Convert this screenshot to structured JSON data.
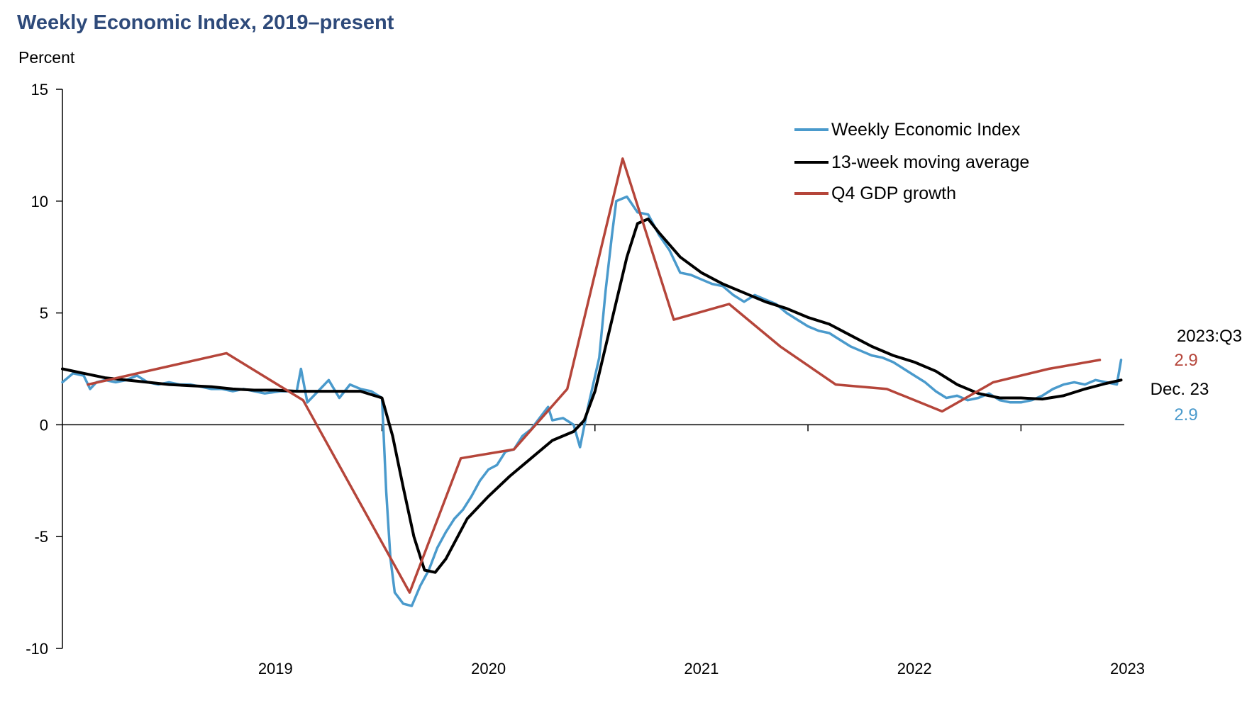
{
  "chart_data": {
    "type": "line",
    "title": "Weekly Economic Index, 2019–present",
    "ylabel": "Percent",
    "xlabel": "",
    "ylim": [
      -10,
      15
    ],
    "yticks": [
      -10,
      -5,
      0,
      5,
      10,
      15
    ],
    "xlim": [
      2018.5,
      2023.485
    ],
    "xticks": [
      2019,
      2020,
      2021,
      2022,
      2023
    ],
    "xtick_labels": [
      "2019",
      "2020",
      "2021",
      "2022",
      "2023"
    ],
    "grid": false,
    "legend_position": "top-right",
    "series": [
      {
        "name": "Weekly Economic Index",
        "color": "#4a9acc",
        "points": [
          [
            2018.5,
            1.9
          ],
          [
            2018.55,
            2.3
          ],
          [
            2018.6,
            2.2
          ],
          [
            2018.63,
            1.6
          ],
          [
            2018.66,
            1.9
          ],
          [
            2018.7,
            2.0
          ],
          [
            2018.75,
            1.9
          ],
          [
            2018.8,
            2.0
          ],
          [
            2018.85,
            2.2
          ],
          [
            2018.9,
            1.9
          ],
          [
            2018.95,
            1.8
          ],
          [
            2019.0,
            1.9
          ],
          [
            2019.05,
            1.8
          ],
          [
            2019.1,
            1.8
          ],
          [
            2019.15,
            1.7
          ],
          [
            2019.2,
            1.6
          ],
          [
            2019.25,
            1.6
          ],
          [
            2019.3,
            1.5
          ],
          [
            2019.35,
            1.6
          ],
          [
            2019.4,
            1.5
          ],
          [
            2019.45,
            1.4
          ],
          [
            2019.52,
            1.5
          ],
          [
            2019.6,
            1.5
          ],
          [
            2019.62,
            2.5
          ],
          [
            2019.65,
            1.0
          ],
          [
            2019.7,
            1.5
          ],
          [
            2019.75,
            2.0
          ],
          [
            2019.8,
            1.2
          ],
          [
            2019.85,
            1.8
          ],
          [
            2019.9,
            1.6
          ],
          [
            2019.95,
            1.5
          ],
          [
            2020.0,
            1.2
          ],
          [
            2020.02,
            -3.0
          ],
          [
            2020.04,
            -6.0
          ],
          [
            2020.06,
            -7.5
          ],
          [
            2020.1,
            -8.0
          ],
          [
            2020.14,
            -8.1
          ],
          [
            2020.18,
            -7.2
          ],
          [
            2020.22,
            -6.5
          ],
          [
            2020.26,
            -5.5
          ],
          [
            2020.3,
            -4.8
          ],
          [
            2020.34,
            -4.2
          ],
          [
            2020.38,
            -3.8
          ],
          [
            2020.42,
            -3.2
          ],
          [
            2020.46,
            -2.5
          ],
          [
            2020.5,
            -2.0
          ],
          [
            2020.54,
            -1.8
          ],
          [
            2020.58,
            -1.2
          ],
          [
            2020.62,
            -1.1
          ],
          [
            2020.66,
            -0.5
          ],
          [
            2020.7,
            -0.2
          ],
          [
            2020.74,
            0.3
          ],
          [
            2020.78,
            0.8
          ],
          [
            2020.8,
            0.2
          ],
          [
            2020.85,
            0.3
          ],
          [
            2020.9,
            0.0
          ],
          [
            2020.93,
            -1.0
          ],
          [
            2020.97,
            0.9
          ],
          [
            2021.02,
            3.0
          ],
          [
            2021.05,
            6.0
          ],
          [
            2021.08,
            8.5
          ],
          [
            2021.1,
            10.0
          ],
          [
            2021.15,
            10.2
          ],
          [
            2021.2,
            9.5
          ],
          [
            2021.25,
            9.4
          ],
          [
            2021.3,
            8.5
          ],
          [
            2021.35,
            7.8
          ],
          [
            2021.4,
            6.8
          ],
          [
            2021.45,
            6.7
          ],
          [
            2021.5,
            6.5
          ],
          [
            2021.55,
            6.3
          ],
          [
            2021.6,
            6.2
          ],
          [
            2021.65,
            5.8
          ],
          [
            2021.7,
            5.5
          ],
          [
            2021.75,
            5.8
          ],
          [
            2021.8,
            5.6
          ],
          [
            2021.85,
            5.4
          ],
          [
            2021.9,
            5.0
          ],
          [
            2021.95,
            4.7
          ],
          [
            2022.0,
            4.4
          ],
          [
            2022.05,
            4.2
          ],
          [
            2022.1,
            4.1
          ],
          [
            2022.15,
            3.8
          ],
          [
            2022.2,
            3.5
          ],
          [
            2022.25,
            3.3
          ],
          [
            2022.3,
            3.1
          ],
          [
            2022.35,
            3.0
          ],
          [
            2022.4,
            2.8
          ],
          [
            2022.45,
            2.5
          ],
          [
            2022.5,
            2.2
          ],
          [
            2022.55,
            1.9
          ],
          [
            2022.6,
            1.5
          ],
          [
            2022.65,
            1.2
          ],
          [
            2022.7,
            1.3
          ],
          [
            2022.75,
            1.1
          ],
          [
            2022.8,
            1.2
          ],
          [
            2022.85,
            1.4
          ],
          [
            2022.9,
            1.1
          ],
          [
            2022.95,
            1.0
          ],
          [
            2023.0,
            1.0
          ],
          [
            2023.05,
            1.1
          ],
          [
            2023.1,
            1.3
          ],
          [
            2023.15,
            1.6
          ],
          [
            2023.2,
            1.8
          ],
          [
            2023.25,
            1.9
          ],
          [
            2023.3,
            1.8
          ],
          [
            2023.35,
            2.0
          ],
          [
            2023.4,
            1.9
          ],
          [
            2023.45,
            1.8
          ],
          [
            2023.47,
            2.9
          ]
        ]
      },
      {
        "name": "13-week moving average",
        "color": "#000000",
        "points": [
          [
            2018.5,
            2.5
          ],
          [
            2018.6,
            2.3
          ],
          [
            2018.7,
            2.1
          ],
          [
            2018.8,
            2.0
          ],
          [
            2018.9,
            1.9
          ],
          [
            2019.0,
            1.8
          ],
          [
            2019.1,
            1.75
          ],
          [
            2019.2,
            1.7
          ],
          [
            2019.3,
            1.6
          ],
          [
            2019.4,
            1.55
          ],
          [
            2019.5,
            1.55
          ],
          [
            2019.6,
            1.5
          ],
          [
            2019.7,
            1.5
          ],
          [
            2019.8,
            1.5
          ],
          [
            2019.9,
            1.5
          ],
          [
            2020.0,
            1.2
          ],
          [
            2020.05,
            -0.5
          ],
          [
            2020.1,
            -2.8
          ],
          [
            2020.15,
            -5.0
          ],
          [
            2020.2,
            -6.5
          ],
          [
            2020.25,
            -6.6
          ],
          [
            2020.3,
            -6.0
          ],
          [
            2020.4,
            -4.2
          ],
          [
            2020.5,
            -3.2
          ],
          [
            2020.6,
            -2.3
          ],
          [
            2020.7,
            -1.5
          ],
          [
            2020.8,
            -0.7
          ],
          [
            2020.9,
            -0.3
          ],
          [
            2020.95,
            0.2
          ],
          [
            2021.0,
            1.5
          ],
          [
            2021.05,
            3.5
          ],
          [
            2021.1,
            5.5
          ],
          [
            2021.15,
            7.5
          ],
          [
            2021.2,
            9.0
          ],
          [
            2021.25,
            9.2
          ],
          [
            2021.3,
            8.6
          ],
          [
            2021.4,
            7.5
          ],
          [
            2021.5,
            6.8
          ],
          [
            2021.6,
            6.3
          ],
          [
            2021.7,
            5.9
          ],
          [
            2021.8,
            5.5
          ],
          [
            2021.9,
            5.2
          ],
          [
            2022.0,
            4.8
          ],
          [
            2022.1,
            4.5
          ],
          [
            2022.2,
            4.0
          ],
          [
            2022.3,
            3.5
          ],
          [
            2022.4,
            3.1
          ],
          [
            2022.5,
            2.8
          ],
          [
            2022.6,
            2.4
          ],
          [
            2022.7,
            1.8
          ],
          [
            2022.8,
            1.4
          ],
          [
            2022.9,
            1.2
          ],
          [
            2023.0,
            1.2
          ],
          [
            2023.1,
            1.15
          ],
          [
            2023.2,
            1.3
          ],
          [
            2023.3,
            1.6
          ],
          [
            2023.4,
            1.85
          ],
          [
            2023.47,
            2.0
          ]
        ]
      },
      {
        "name": "Q4 GDP growth",
        "color": "#b5453a",
        "points": [
          [
            2018.62,
            1.8
          ],
          [
            2019.27,
            3.2
          ],
          [
            2019.63,
            1.1
          ],
          [
            2020.13,
            -7.5
          ],
          [
            2020.37,
            -1.5
          ],
          [
            2020.62,
            -1.1
          ],
          [
            2020.87,
            1.6
          ],
          [
            2021.13,
            11.9
          ],
          [
            2021.37,
            4.7
          ],
          [
            2021.63,
            5.4
          ],
          [
            2021.87,
            3.5
          ],
          [
            2022.13,
            1.8
          ],
          [
            2022.37,
            1.6
          ],
          [
            2022.63,
            0.6
          ],
          [
            2022.87,
            1.9
          ],
          [
            2023.13,
            2.5
          ],
          [
            2023.37,
            2.9
          ]
        ]
      }
    ],
    "annotations": [
      {
        "label": "2023:Q3",
        "value": "2.9",
        "color": "#b5453a"
      },
      {
        "label": "Dec. 23",
        "value": "2.9",
        "color": "#4a9acc"
      }
    ]
  }
}
